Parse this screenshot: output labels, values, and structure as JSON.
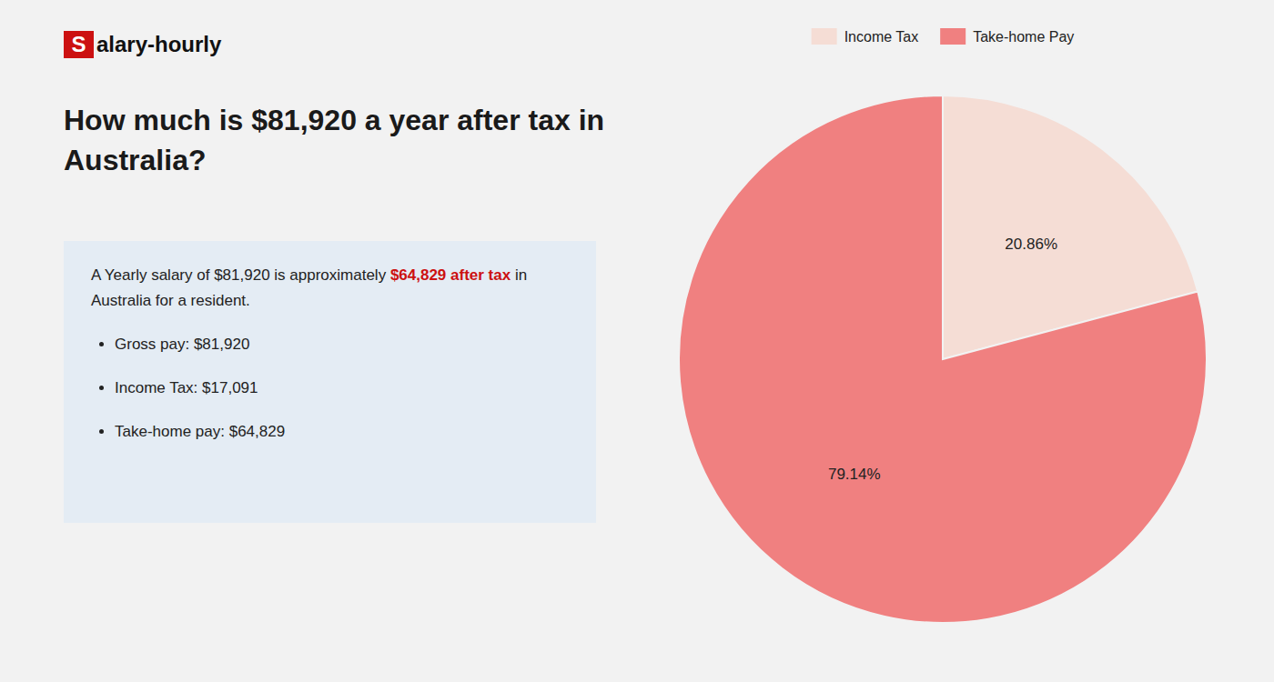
{
  "chart_data": {
    "type": "pie",
    "title": "How much is $81,920 a year after tax in Australia?",
    "annotations": [
      "S",
      "alary-hourly",
      "A Yearly salary of $81,920 is approximately ",
      "$64,829 after tax",
      " in",
      "Australia for a resident.",
      "Gross pay: $81,920",
      "Income Tax: $17,091",
      "Take-home pay: $64,829"
    ],
    "categories": [
      "Income Tax",
      "Take-home Pay"
    ],
    "values": [
      20.86,
      79.14
    ],
    "value_labels": [
      "20.86%",
      "79.14%"
    ],
    "colors": [
      "#f5ddd5",
      "#f08080"
    ],
    "data_labels": true,
    "legend": "top"
  }
}
